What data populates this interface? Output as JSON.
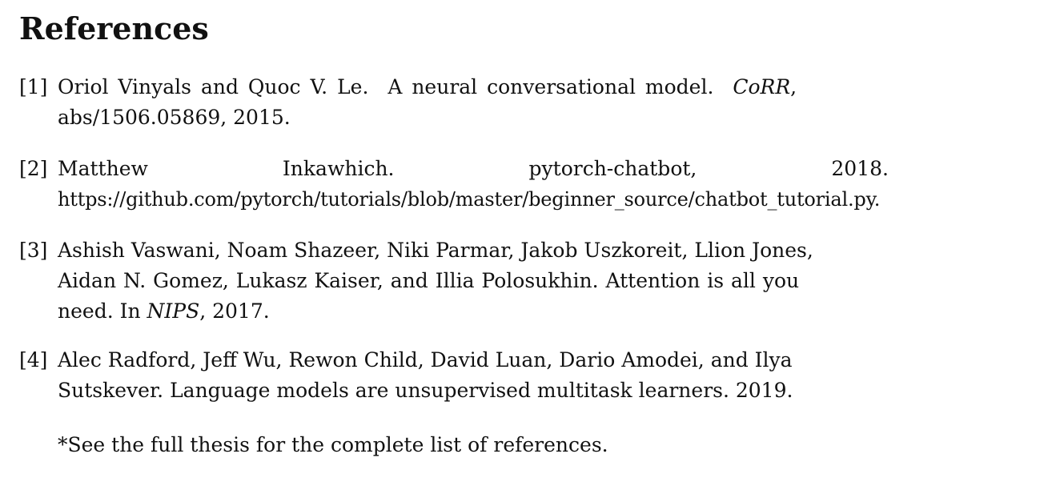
{
  "heading": "References",
  "references": [
    {
      "label": "[1]",
      "authors": "Oriol Vinyals and Quoc V. Le.",
      "title": "A neural conversational model.",
      "venue": "CoRR",
      "venue_suffix": ",",
      "rest": "abs/1506.05869, 2015."
    },
    {
      "label": "[2]",
      "words": [
        "Matthew",
        "Inkawhich.",
        "pytorch-chatbot,",
        "2018."
      ],
      "url": "https://github.com/pytorch/tutorials/blob/master/beginner_source/chatbot_tutorial.py."
    },
    {
      "label": "[3]",
      "line1": "Ashish Vaswani, Noam Shazeer, Niki Parmar, Jakob Uszkoreit, Llion Jones,",
      "line2": "Aidan N. Gomez, Lukasz Kaiser, and Illia Polosukhin. Attention is all you",
      "line3_pre": "need. In ",
      "venue": "NIPS",
      "line3_post": ", 2017."
    },
    {
      "label": "[4]",
      "line1": "Alec Radford, Jeff Wu, Rewon Child, David Luan, Dario Amodei, and Ilya",
      "line2": "Sutskever. Language models are unsupervised multitask learners. 2019."
    }
  ],
  "note": "*See the full thesis for the complete list of references."
}
